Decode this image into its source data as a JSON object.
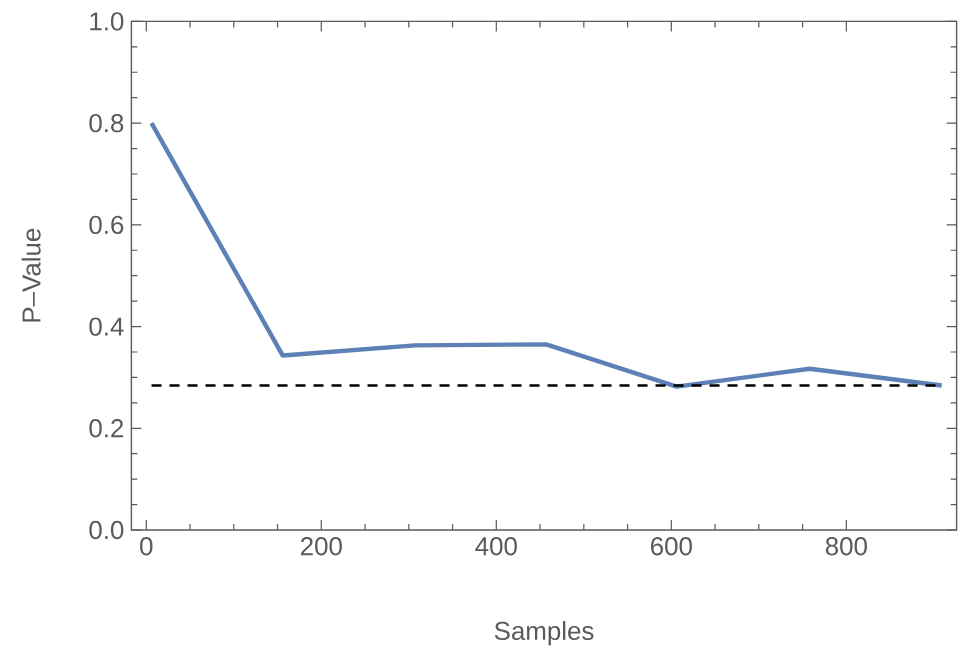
{
  "chart_data": {
    "type": "line",
    "xlabel": "Samples",
    "ylabel": "P–Value",
    "x": [
      6,
      156,
      307,
      457,
      606,
      758,
      909
    ],
    "series": [
      {
        "color": "#5e81b5",
        "values": [
          0.8,
          0.343,
          0.363,
          0.365,
          0.282,
          0.317,
          0.284
        ]
      }
    ],
    "xlim": [
      -17,
      926
    ],
    "ylim": [
      0,
      1
    ],
    "xticks": [
      0,
      200,
      400,
      600,
      800
    ],
    "yticks": [
      {
        "value": 0,
        "label": "0.0"
      },
      {
        "value": 0.2,
        "label": "0.2"
      },
      {
        "value": 0.4,
        "label": "0.4"
      },
      {
        "value": 0.6,
        "label": "0.6"
      },
      {
        "value": 0.8,
        "label": "0.8"
      },
      {
        "value": 1,
        "label": "1.0"
      }
    ],
    "ref_lines": [
      {
        "axis": "y",
        "value": 0.284,
        "color": "#000000",
        "line_style": "dashed"
      }
    ],
    "grid": false,
    "marker": "none",
    "line_style": "solid"
  }
}
